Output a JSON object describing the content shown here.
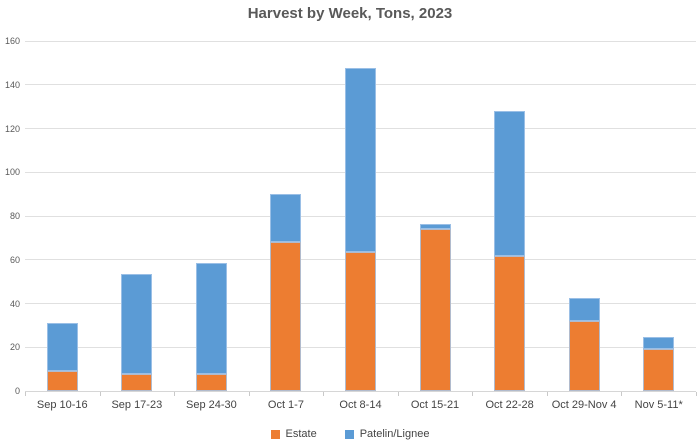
{
  "chart_data": {
    "type": "bar",
    "stacked": true,
    "title": "Harvest by Week, Tons, 2023",
    "xlabel": "",
    "ylabel": "",
    "ylim": [
      0,
      160
    ],
    "ytick_step": 20,
    "yticks": [
      0,
      20,
      40,
      60,
      80,
      100,
      120,
      140,
      160
    ],
    "grid": true,
    "legend_position": "bottom-center",
    "categories": [
      "Sep 10-16",
      "Sep 17-23",
      "Sep 24-30",
      "Oct 1-7",
      "Oct 8-14",
      "Oct 15-21",
      "Oct 22-28",
      "Oct 29-Nov 4",
      "Nov 5-11*"
    ],
    "series": [
      {
        "name": "Estate",
        "color": "#ED7D31",
        "values": [
          9,
          8,
          8,
          68,
          63.5,
          74,
          61.5,
          32,
          19
        ]
      },
      {
        "name": "Patelin/Lignee",
        "color": "#5B9BD5",
        "values": [
          22,
          45.5,
          50.5,
          22,
          84,
          2.5,
          66.5,
          10.5,
          5.5
        ]
      }
    ],
    "stack_totals": [
      31,
      53.5,
      58.5,
      90,
      147.5,
      76.5,
      128,
      42.5,
      24.5
    ]
  },
  "colors": {
    "grid": "#E0E0E0",
    "axis_line": "#D6D6D6",
    "title_text": "#595959",
    "axis_text": "#595959",
    "category_text": "#444444"
  }
}
